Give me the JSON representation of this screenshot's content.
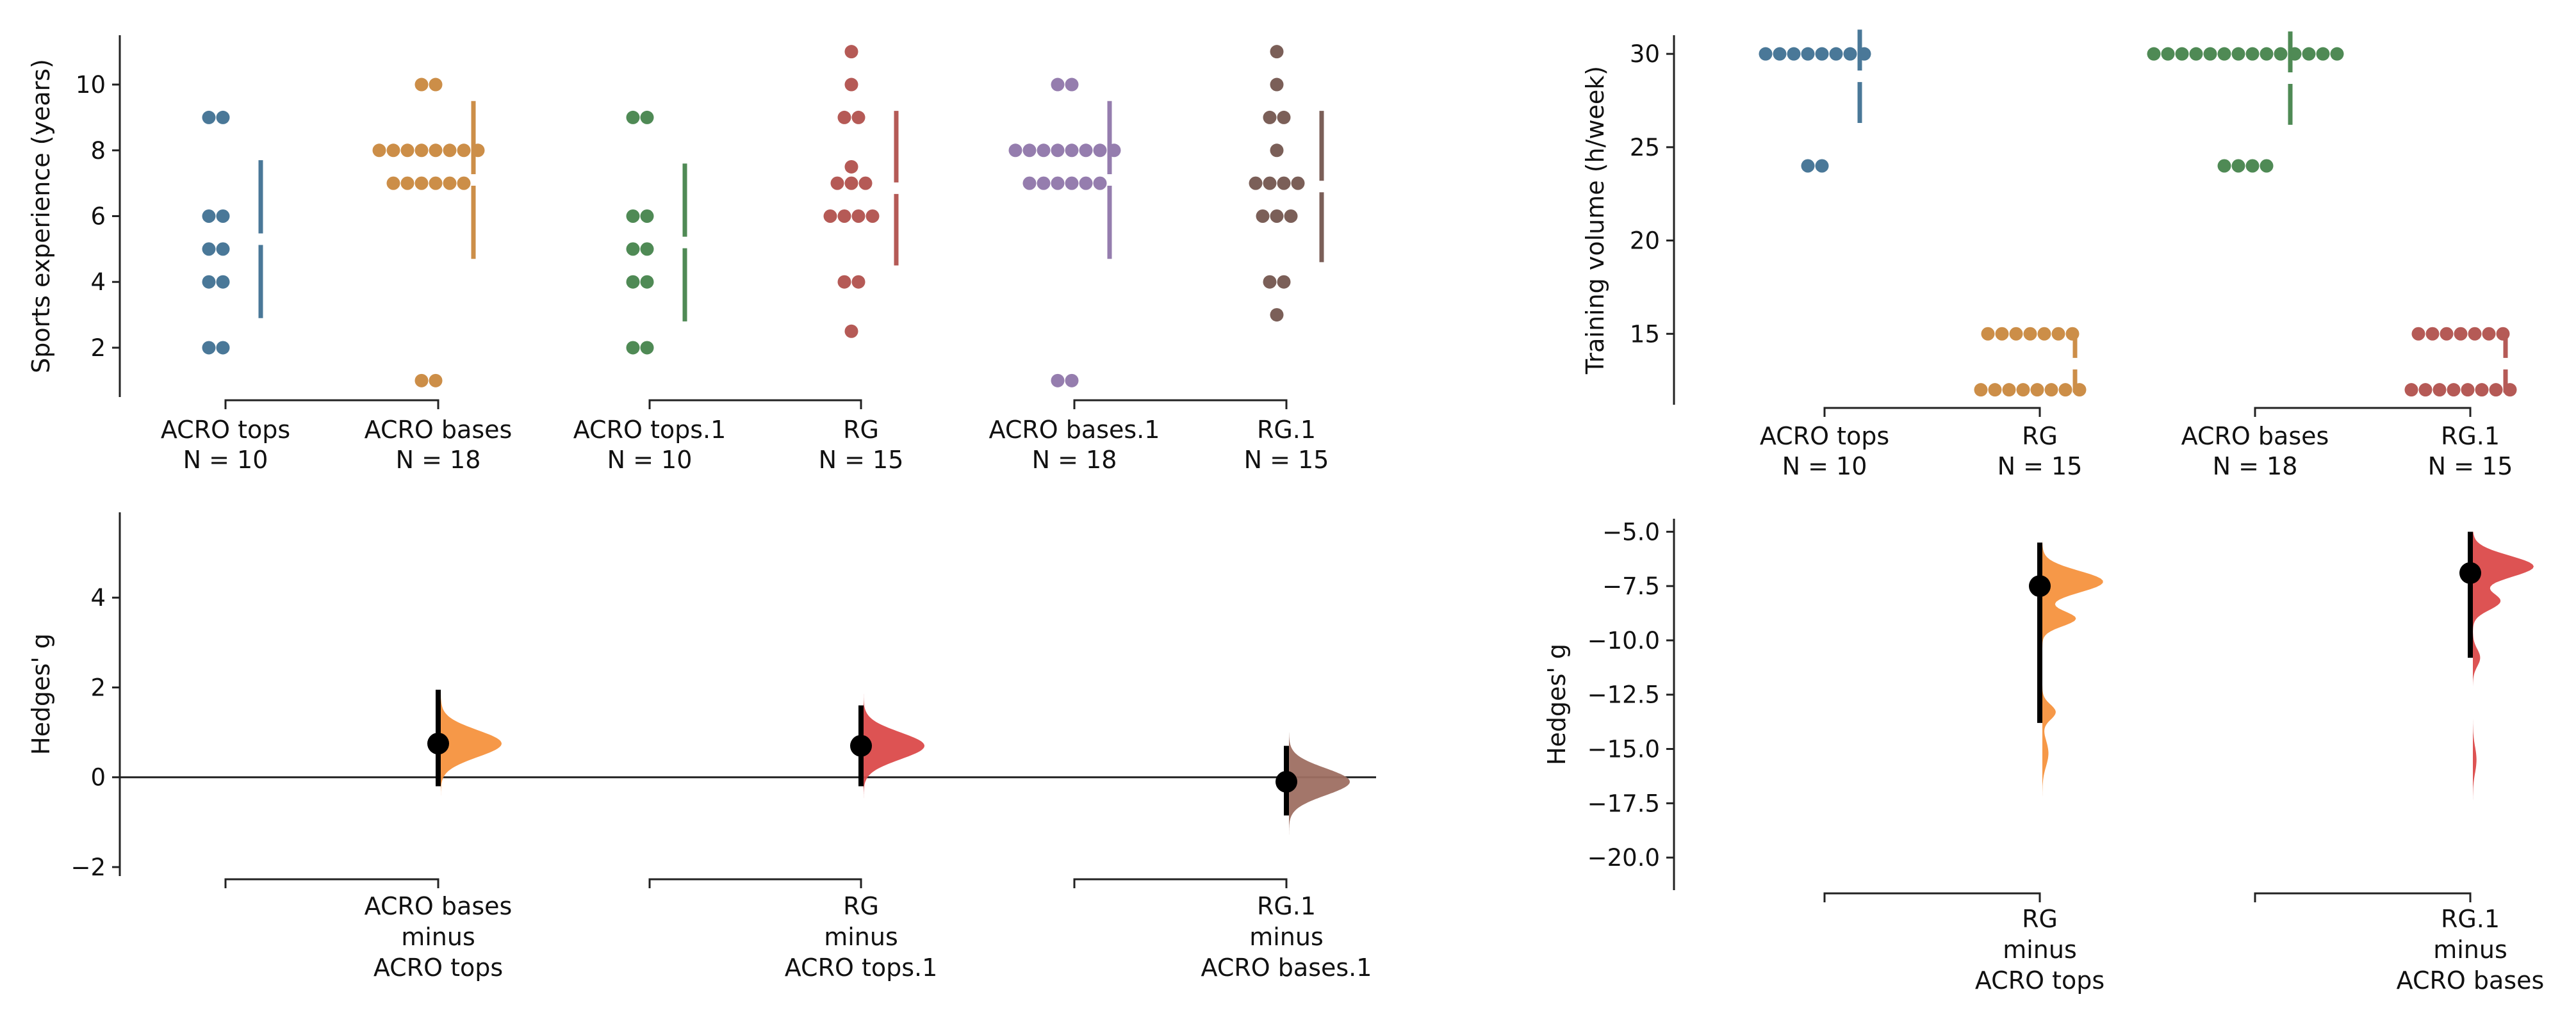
{
  "chart_data": [
    {
      "type": "scatter",
      "subtype": "swarm",
      "ylabel": "Sports experience (years)",
      "ylim": [
        0.5,
        11.5
      ],
      "yticks": [
        2,
        4,
        6,
        8,
        10
      ],
      "groups": [
        {
          "label": "ACRO tops",
          "n_label": "N = 10",
          "color": "#4a7898",
          "values": [
            9,
            9,
            6,
            6,
            5,
            5,
            4,
            4,
            2,
            2
          ],
          "mean_sd": [
            5.3,
            2.4
          ]
        },
        {
          "label": "ACRO bases",
          "n_label": "N = 18",
          "color": "#cc8e48",
          "values": [
            10,
            10,
            8,
            8,
            8,
            8,
            8,
            8,
            8,
            8,
            7,
            7,
            7,
            7,
            7,
            7,
            1,
            1
          ],
          "mean_sd": [
            7.1,
            2.4
          ]
        },
        {
          "label": "ACRO tops.1",
          "n_label": "N = 10",
          "color": "#4f8a55",
          "values": [
            9,
            9,
            6,
            6,
            5,
            5,
            4,
            4,
            2,
            2
          ],
          "mean_sd": [
            5.2,
            2.4
          ]
        },
        {
          "label": "RG",
          "n_label": "N = 15",
          "color": "#b55a56",
          "values": [
            11,
            10,
            9,
            9,
            7.5,
            7,
            7,
            7,
            6,
            6,
            6,
            4,
            4,
            2.5,
            6
          ],
          "mean_sd": [
            6.85,
            2.35
          ]
        },
        {
          "label": "ACRO bases.1",
          "n_label": "N = 18",
          "color": "#957dae",
          "values": [
            10,
            10,
            8,
            8,
            8,
            8,
            8,
            8,
            8,
            8,
            7,
            7,
            7,
            7,
            7,
            7,
            1,
            1
          ],
          "mean_sd": [
            7.1,
            2.4
          ]
        },
        {
          "label": "RG.1",
          "n_label": "N = 15",
          "color": "#7b5f58",
          "values": [
            11,
            10,
            9,
            9,
            8,
            7,
            7,
            7,
            7,
            6,
            6,
            6,
            4,
            4,
            3
          ],
          "mean_sd": [
            6.9,
            2.3
          ]
        }
      ],
      "brackets": [
        [
          0,
          1
        ],
        [
          2,
          3
        ],
        [
          4,
          5
        ]
      ]
    },
    {
      "type": "scatter",
      "subtype": "effect-size",
      "ylabel": "Hedges' g",
      "ylim": [
        -2.2,
        5.9
      ],
      "yticks": [
        -2,
        0,
        2,
        4
      ],
      "yticklabels": [
        "−2",
        "0",
        "2",
        "4"
      ],
      "zero_line": true,
      "contrasts": [
        {
          "label_lines": [
            "ACRO bases",
            "minus",
            "ACRO tops"
          ],
          "x_group": 1,
          "estimate": 0.75,
          "ci": [
            -0.2,
            1.95
          ],
          "color": "#f5923e",
          "dist": {
            "mode": 0.75,
            "sd": 0.3,
            "tail_top": 3.9,
            "tail_bottom": -0.8
          }
        },
        {
          "label_lines": [
            "RG",
            "minus",
            "ACRO tops.1"
          ],
          "x_group": 3,
          "estimate": 0.7,
          "ci": [
            -0.2,
            1.6
          ],
          "color": "#db4a4a",
          "dist": {
            "mode": 0.7,
            "sd": 0.3,
            "tail_top": 2.7,
            "tail_bottom": -0.8
          }
        },
        {
          "label_lines": [
            "RG.1",
            "minus",
            "ACRO bases.1"
          ],
          "x_group": 5,
          "estimate": -0.1,
          "ci": [
            -0.85,
            0.7
          ],
          "color": "#9e6f62",
          "dist": {
            "mode": -0.1,
            "sd": 0.3,
            "tail_top": 1.0,
            "tail_bottom": -1.9
          }
        }
      ],
      "brackets": [
        [
          0,
          1
        ],
        [
          2,
          3
        ],
        [
          4,
          5
        ]
      ]
    },
    {
      "type": "scatter",
      "subtype": "swarm",
      "ylabel": "Training volume (h/week)",
      "ylim": [
        11.2,
        31.0
      ],
      "yticks": [
        15,
        20,
        25,
        30
      ],
      "groups": [
        {
          "label": "ACRO tops",
          "n_label": "N = 10",
          "color": "#4a7898",
          "values": [
            30,
            30,
            30,
            30,
            30,
            30,
            30,
            30,
            24,
            24
          ],
          "mean_sd": [
            28.8,
            2.5
          ]
        },
        {
          "label": "RG",
          "n_label": "N = 15",
          "color": "#cc8e48",
          "values": [
            15,
            15,
            15,
            15,
            15,
            15,
            15,
            12,
            12,
            12,
            12,
            12,
            12,
            12,
            12
          ],
          "mean_sd": [
            13.4,
            1.55
          ]
        },
        {
          "label": "ACRO bases",
          "n_label": "N = 18",
          "color": "#4f8a55",
          "values": [
            30,
            30,
            30,
            30,
            30,
            30,
            30,
            30,
            30,
            30,
            30,
            30,
            30,
            30,
            24,
            24,
            24,
            24
          ],
          "mean_sd": [
            28.7,
            2.5
          ]
        },
        {
          "label": "RG.1",
          "n_label": "N = 15",
          "color": "#b55a56",
          "values": [
            15,
            15,
            15,
            15,
            15,
            15,
            15,
            12,
            12,
            12,
            12,
            12,
            12,
            12,
            12
          ],
          "mean_sd": [
            13.4,
            1.55
          ]
        }
      ],
      "brackets": [
        [
          0,
          1
        ],
        [
          2,
          3
        ]
      ]
    },
    {
      "type": "scatter",
      "subtype": "effect-size",
      "ylabel": "Hedges' g",
      "ylim": [
        -21.5,
        -4.4
      ],
      "yticks": [
        -5,
        -7.5,
        -10,
        -12.5,
        -15,
        -17.5,
        -20
      ],
      "yticklabels": [
        "−5.0",
        "−7.5",
        "−10.0",
        "−12.5",
        "−15.0",
        "−17.5",
        "−20.0"
      ],
      "zero_line": false,
      "contrasts": [
        {
          "label_lines": [
            "RG",
            "minus",
            "ACRO tops"
          ],
          "x_group": 1,
          "estimate": -7.5,
          "ci": [
            -13.8,
            -5.5
          ],
          "color": "#f5923e",
          "dist": {
            "modes": [
              [
                -7.3,
                0.5,
                1.0
              ],
              [
                -9.0,
                0.35,
                0.55
              ],
              [
                -13.3,
                0.35,
                0.22
              ],
              [
                -15.2,
                0.6,
                0.1
              ]
            ],
            "tail_top": -5.4,
            "tail_bottom": -21.0
          }
        },
        {
          "label_lines": [
            "RG.1",
            "minus",
            "ACRO bases"
          ],
          "x_group": 3,
          "estimate": -6.9,
          "ci": [
            -10.8,
            -5.0
          ],
          "color": "#db4a4a",
          "dist": {
            "modes": [
              [
                -6.6,
                0.5,
                1.0
              ],
              [
                -8.2,
                0.4,
                0.45
              ],
              [
                -10.8,
                0.4,
                0.12
              ],
              [
                -15.5,
                0.6,
                0.06
              ]
            ],
            "tail_top": -5.0,
            "tail_bottom": -20.0
          }
        }
      ],
      "brackets": [
        [
          0,
          1
        ],
        [
          2,
          3
        ]
      ]
    }
  ]
}
